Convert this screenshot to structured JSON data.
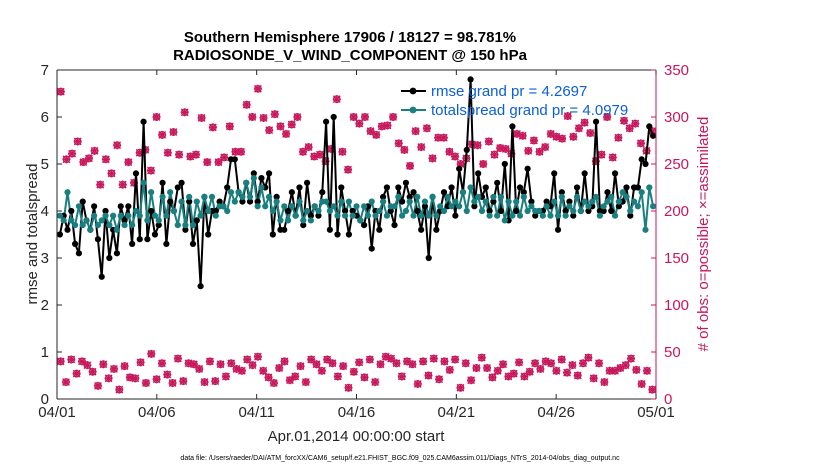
{
  "chart_data": {
    "type": "line",
    "title": "Southern Hemisphere 17906 / 18127 = 98.781%",
    "subtitle": "RADIOSONDE_V_WIND_COMPONENT @ 150 hPa",
    "xlabel": "Apr.01,2014 00:00:00 start",
    "ylabel_left": "rmse and totalspread",
    "ylabel_right": "# of obs: o=possible; ×=assimilated",
    "x_tick_labels": [
      "04/01",
      "04/06",
      "04/11",
      "04/16",
      "04/21",
      "04/26",
      "05/01"
    ],
    "x_range_days": [
      0,
      30
    ],
    "ylim_left": [
      0,
      7
    ],
    "y_ticks_left": [
      "0",
      "1",
      "2",
      "3",
      "4",
      "5",
      "6",
      "7"
    ],
    "ylim_right": [
      0,
      350
    ],
    "y_ticks_right": [
      "0",
      "50",
      "100",
      "150",
      "200",
      "250",
      "300",
      "350"
    ],
    "legend": {
      "rmse_label": "rmse grand pr = 4.2697",
      "spread_label": "totalspread grand pr = 4.0979",
      "position": "top-right"
    },
    "colors": {
      "rmse": "#000000",
      "spread": "#1a7f80",
      "obs": "#c8185c",
      "legend_text": "#0b5fd6"
    },
    "series": [
      {
        "name": "rmse",
        "values": [
          3.5,
          3.9,
          3.6,
          4.0,
          3.3,
          3.1,
          4.2,
          3.8,
          3.6,
          4.1,
          3.4,
          2.6,
          4.0,
          3.0,
          3.6,
          3.1,
          4.1,
          3.8,
          4.1,
          3.3,
          4.8,
          3.4,
          5.9,
          3.4,
          4.0,
          3.5,
          3.7,
          4.6,
          3.3,
          4.2,
          4.0,
          4.5,
          4.6,
          3.6,
          4.2,
          3.3,
          3.8,
          2.4,
          4.3,
          3.5,
          4.0,
          4.0,
          4.2,
          4.1,
          4.5,
          5.1,
          5.1,
          4.4,
          4.2,
          4.6,
          4.2,
          4.8,
          4.2,
          4.7,
          4.5,
          4.8,
          3.5,
          4.3,
          3.6,
          3.6,
          4.0,
          4.4,
          3.9,
          4.5,
          3.7,
          4.6,
          3.9,
          4.1,
          3.9,
          4.4,
          5.9,
          3.6,
          6.0,
          3.5,
          4.5,
          4.0,
          3.5,
          4.0,
          3.9,
          3.8,
          3.7,
          4.1,
          3.2,
          4.0,
          3.6,
          4.3,
          4.5,
          4.0,
          3.7,
          4.5,
          4.2,
          4.6,
          4.3,
          4.4,
          4.0,
          3.6,
          4.1,
          3.0,
          4.3,
          3.6,
          4.0,
          4.4,
          4.1,
          4.5,
          3.9,
          4.9,
          4.4,
          5.3,
          6.8,
          4.1,
          4.8,
          4.3,
          4.5,
          4.0,
          4.2,
          4.6,
          4.0,
          5.0,
          3.8,
          5.8,
          4.0,
          4.5,
          4.4,
          4.9,
          4.2,
          3.9,
          4.0,
          4.0,
          4.2,
          4.1,
          4.8,
          3.6,
          4.4,
          4.0,
          4.2,
          3.9,
          4.5,
          4.0,
          4.8,
          4.0,
          4.1,
          5.9,
          4.0,
          4.0,
          4.4,
          4.0,
          4.8,
          4.1,
          4.2,
          4.5,
          3.9,
          4.5,
          4.5,
          5.1,
          5.0,
          5.8,
          5.6
        ]
      },
      {
        "name": "totalspread",
        "values": [
          3.9,
          3.8,
          4.4,
          3.8,
          3.7,
          4.1,
          3.7,
          3.8,
          3.6,
          3.9,
          3.7,
          3.8,
          3.9,
          3.7,
          3.9,
          3.6,
          3.9,
          3.7,
          3.9,
          3.7,
          4.0,
          3.9,
          4.6,
          3.8,
          4.4,
          3.9,
          3.8,
          4.3,
          3.9,
          4.4,
          4.0,
          3.7,
          4.2,
          3.7,
          4.3,
          3.7,
          4.2,
          3.9,
          4.3,
          4.0,
          4.3,
          3.9,
          4.1,
          4.1,
          4.0,
          4.4,
          4.2,
          4.4,
          4.3,
          4.6,
          4.3,
          4.7,
          4.1,
          4.5,
          4.1,
          4.3,
          4.0,
          4.2,
          3.8,
          4.1,
          3.8,
          4.1,
          3.9,
          4.2,
          3.8,
          4.0,
          3.8,
          4.1,
          4.0,
          4.2,
          4.2,
          4.0,
          4.1,
          3.9,
          4.2,
          3.9,
          4.2,
          3.9,
          4.1,
          3.8,
          4.1,
          3.9,
          4.2,
          3.9,
          4.0,
          4.2,
          3.9,
          4.1,
          4.1,
          4.3,
          3.9,
          4.0,
          4.2,
          3.9,
          4.3,
          3.9,
          4.2,
          3.9,
          4.3,
          3.9,
          4.1,
          4.0,
          4.3,
          4.1,
          4.2,
          4.1,
          4.4,
          4.0,
          4.5,
          4.2,
          4.3,
          4.0,
          4.2,
          3.9,
          4.3,
          3.9,
          4.3,
          3.8,
          4.2,
          3.9,
          4.2,
          3.9,
          4.3,
          4.0,
          4.1,
          4.0,
          4.0,
          3.9,
          4.1,
          3.9,
          4.2,
          3.9,
          4.3,
          3.9,
          4.1,
          4.0,
          4.3,
          4.0,
          4.2,
          4.1,
          4.2,
          4.3,
          3.9,
          4.1,
          4.2,
          4.3,
          3.9,
          4.2,
          4.4,
          4.3,
          4.0,
          4.2,
          4.1,
          4.4,
          3.6,
          4.5,
          4.1
        ]
      }
    ],
    "obs_counts": {
      "high_group": [
        327,
        255,
        261,
        274,
        252,
        256,
        264,
        228,
        255,
        240,
        270,
        228,
        252,
        230,
        262,
        265,
        243,
        300,
        281,
        262,
        284,
        260,
        305,
        258,
        260,
        299,
        252,
        289,
        252,
        257,
        290,
        263,
        263,
        313,
        300,
        330,
        299,
        286,
        303,
        290,
        282,
        292,
        300,
        263,
        268,
        258,
        260,
        253,
        266,
        319,
        263,
        244,
        300,
        293,
        300,
        285,
        281,
        290,
        291,
        300,
        272,
        265,
        248,
        285,
        268,
        288,
        256,
        278,
        278,
        263,
        258,
        250,
        256,
        271,
        270,
        250,
        274,
        260,
        267,
        266,
        261,
        282,
        280,
        264,
        275,
        263,
        268,
        282,
        279,
        277,
        301,
        279,
        288,
        294,
        283,
        253,
        260,
        300,
        257,
        278,
        296,
        288,
        293,
        272,
        264,
        285
      ],
      "low_group": [
        40,
        18,
        42,
        27,
        40,
        36,
        29,
        14,
        37,
        22,
        32,
        10,
        35,
        23,
        22,
        39,
        17,
        48,
        21,
        38,
        26,
        17,
        43,
        19,
        38,
        37,
        32,
        18,
        40,
        19,
        37,
        24,
        38,
        32,
        30,
        42,
        36,
        45,
        30,
        23,
        17,
        33,
        40,
        20,
        24,
        35,
        18,
        42,
        37,
        30,
        42,
        38,
        24,
        35,
        12,
        29,
        39,
        23,
        42,
        18,
        37,
        45,
        43,
        38,
        24,
        40,
        37,
        16,
        40,
        25,
        43,
        21,
        40,
        31,
        42,
        12,
        38,
        20,
        33,
        44,
        33,
        23,
        30,
        37,
        24,
        27,
        39,
        24,
        29,
        38,
        32,
        40,
        38,
        30,
        42,
        28,
        36,
        25,
        38,
        44,
        22,
        38,
        18,
        30,
        30,
        33,
        36,
        43,
        31,
        16,
        30,
        10
      ]
    },
    "footnote": "data file: /Users/raeder/DAI/ATM_forcXX/CAM6_setup/f.e21.FHIST_BGC.f09_025.CAM6assim.011/Diags_NTrS_2014-04/obs_diag_output.nc"
  }
}
